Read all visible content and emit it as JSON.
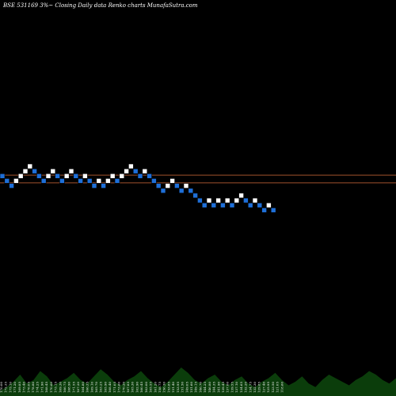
{
  "header": {
    "title": "BSE 531169 3%~  Closing Daily data  Renko  charts MunafaSutra.com"
  },
  "chart_data": {
    "type": "renko",
    "title": "BSE 531169 3%~  Closing Daily data  Renko  charts MunafaSutra.com",
    "y_axis": "hidden",
    "grid": false,
    "colors": {
      "background": "#000000",
      "up_brick": "#ffffff",
      "down_brick": "#1e6fd8",
      "reference_line": "#a0522d",
      "volume": "#0b3d0b"
    },
    "reference_lines": [
      {
        "label": "upper",
        "y_level": 11.2
      },
      {
        "label": "lower",
        "y_level": 9.6
      }
    ],
    "bricks": [
      {
        "col": 0,
        "level": 11,
        "dir": "down"
      },
      {
        "col": 1,
        "level": 10,
        "dir": "down"
      },
      {
        "col": 2,
        "level": 9,
        "dir": "down"
      },
      {
        "col": 3,
        "level": 10,
        "dir": "up"
      },
      {
        "col": 4,
        "level": 11,
        "dir": "up"
      },
      {
        "col": 5,
        "level": 12,
        "dir": "up"
      },
      {
        "col": 6,
        "level": 13,
        "dir": "up"
      },
      {
        "col": 7,
        "level": 12,
        "dir": "down"
      },
      {
        "col": 8,
        "level": 11,
        "dir": "down"
      },
      {
        "col": 9,
        "level": 10,
        "dir": "down"
      },
      {
        "col": 10,
        "level": 11,
        "dir": "up"
      },
      {
        "col": 11,
        "level": 12,
        "dir": "up"
      },
      {
        "col": 12,
        "level": 11,
        "dir": "down"
      },
      {
        "col": 13,
        "level": 10,
        "dir": "down"
      },
      {
        "col": 14,
        "level": 11,
        "dir": "up"
      },
      {
        "col": 15,
        "level": 12,
        "dir": "up"
      },
      {
        "col": 16,
        "level": 11,
        "dir": "down"
      },
      {
        "col": 17,
        "level": 10,
        "dir": "down"
      },
      {
        "col": 18,
        "level": 11,
        "dir": "up"
      },
      {
        "col": 19,
        "level": 10,
        "dir": "down"
      },
      {
        "col": 20,
        "level": 9,
        "dir": "down"
      },
      {
        "col": 21,
        "level": 10,
        "dir": "up"
      },
      {
        "col": 22,
        "level": 9,
        "dir": "down"
      },
      {
        "col": 23,
        "level": 10,
        "dir": "up"
      },
      {
        "col": 24,
        "level": 11,
        "dir": "up"
      },
      {
        "col": 25,
        "level": 10,
        "dir": "down"
      },
      {
        "col": 26,
        "level": 11,
        "dir": "up"
      },
      {
        "col": 27,
        "level": 12,
        "dir": "up"
      },
      {
        "col": 28,
        "level": 13,
        "dir": "up"
      },
      {
        "col": 29,
        "level": 12,
        "dir": "down"
      },
      {
        "col": 30,
        "level": 11,
        "dir": "down"
      },
      {
        "col": 31,
        "level": 12,
        "dir": "up"
      },
      {
        "col": 32,
        "level": 11,
        "dir": "down"
      },
      {
        "col": 33,
        "level": 10,
        "dir": "down"
      },
      {
        "col": 34,
        "level": 9,
        "dir": "down"
      },
      {
        "col": 35,
        "level": 8,
        "dir": "down"
      },
      {
        "col": 36,
        "level": 9,
        "dir": "up"
      },
      {
        "col": 37,
        "level": 10,
        "dir": "up"
      },
      {
        "col": 38,
        "level": 9,
        "dir": "down"
      },
      {
        "col": 39,
        "level": 8,
        "dir": "down"
      },
      {
        "col": 40,
        "level": 9,
        "dir": "up"
      },
      {
        "col": 41,
        "level": 8,
        "dir": "down"
      },
      {
        "col": 42,
        "level": 7,
        "dir": "down"
      },
      {
        "col": 43,
        "level": 6,
        "dir": "down"
      },
      {
        "col": 44,
        "level": 5,
        "dir": "down"
      },
      {
        "col": 45,
        "level": 6,
        "dir": "up"
      },
      {
        "col": 46,
        "level": 5,
        "dir": "down"
      },
      {
        "col": 47,
        "level": 6,
        "dir": "up"
      },
      {
        "col": 48,
        "level": 5,
        "dir": "down"
      },
      {
        "col": 49,
        "level": 6,
        "dir": "up"
      },
      {
        "col": 50,
        "level": 5,
        "dir": "down"
      },
      {
        "col": 51,
        "level": 6,
        "dir": "up"
      },
      {
        "col": 52,
        "level": 7,
        "dir": "up"
      },
      {
        "col": 53,
        "level": 6,
        "dir": "down"
      },
      {
        "col": 54,
        "level": 5,
        "dir": "down"
      },
      {
        "col": 55,
        "level": 6,
        "dir": "up"
      },
      {
        "col": 56,
        "level": 5,
        "dir": "down"
      },
      {
        "col": 57,
        "level": 4,
        "dir": "down"
      },
      {
        "col": 58,
        "level": 5,
        "dir": "up"
      },
      {
        "col": 59,
        "level": 4,
        "dir": "down"
      }
    ],
    "x_tick_labels": [
      "170.00",
      "172.35",
      "175.10",
      "171.20",
      "169.85",
      "173.40",
      "176.05",
      "178.80",
      "174.25",
      "171.90",
      "168.45",
      "170.60",
      "173.15",
      "169.30",
      "166.75",
      "168.90",
      "171.55",
      "167.20",
      "164.80",
      "166.35",
      "169.10",
      "165.70",
      "163.25",
      "165.90",
      "168.40",
      "171.05",
      "173.60",
      "170.20",
      "167.85",
      "165.30",
      "162.90",
      "160.45",
      "163.00",
      "165.55",
      "161.20",
      "158.75",
      "156.30",
      "153.85",
      "151.40",
      "153.95",
      "151.50",
      "149.05",
      "151.60",
      "149.15",
      "146.70",
      "144.25",
      "146.80",
      "144.35",
      "141.90",
      "139.45",
      "137.00",
      "139.55",
      "137.10",
      "134.65",
      "132.20",
      "134.75",
      "132.30",
      "129.85",
      "127.40",
      "125.95",
      "123.50",
      "121.05",
      "118.60"
    ],
    "volume": [
      3,
      5,
      8,
      12,
      7,
      9,
      14,
      11,
      6,
      8,
      10,
      13,
      9,
      7,
      11,
      15,
      12,
      8,
      6,
      9,
      11,
      14,
      10,
      7,
      5,
      8,
      12,
      16,
      13,
      9,
      7,
      10,
      12,
      8,
      6,
      9,
      11,
      7,
      5,
      8,
      10,
      13,
      9,
      6,
      8,
      11,
      7,
      5,
      9,
      12,
      10,
      8,
      6,
      9,
      11,
      14,
      12,
      9,
      7,
      10
    ]
  }
}
